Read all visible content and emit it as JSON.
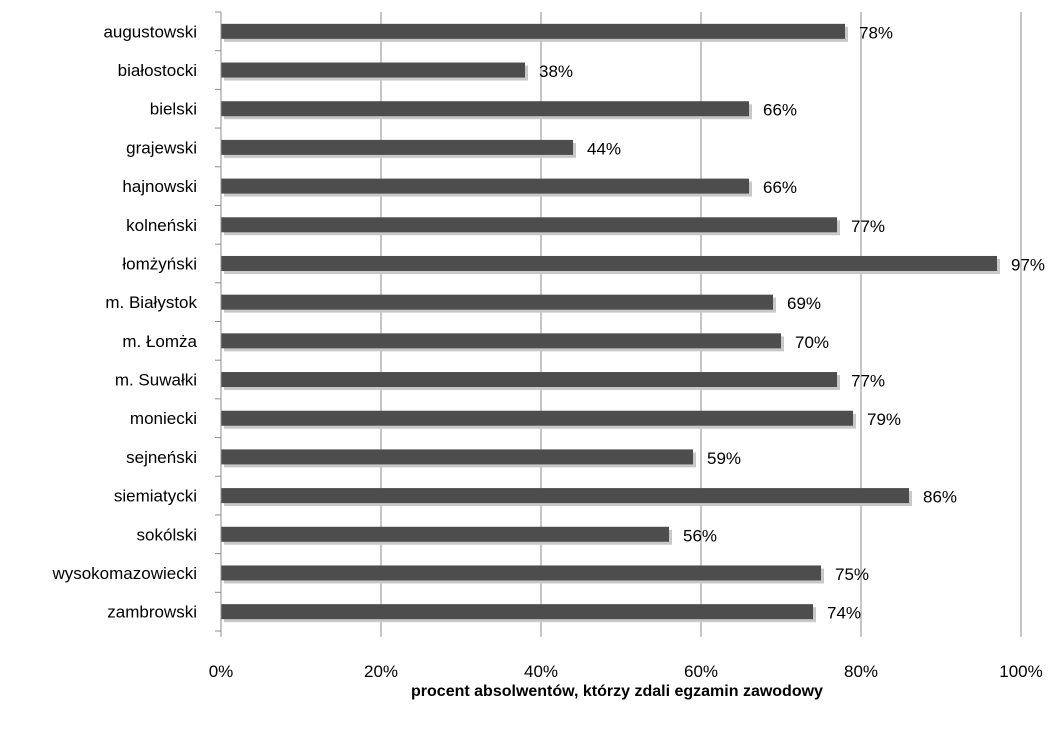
{
  "chart_data": {
    "type": "bar",
    "orientation": "horizontal",
    "categories": [
      "augustowski",
      "białostocki",
      "bielski",
      "grajewski",
      "hajnowski",
      "kolneński",
      "łomżyński",
      "m. Białystok",
      "m. Łomża",
      "m. Suwałki",
      "moniecki",
      "sejneński",
      "siemiatycki",
      "sokólski",
      "wysokomazowiecki",
      "zambrowski"
    ],
    "values": [
      78,
      38,
      66,
      44,
      66,
      77,
      97,
      69,
      70,
      77,
      79,
      59,
      86,
      56,
      75,
      74
    ],
    "data_labels": [
      "78%",
      "38%",
      "66%",
      "44%",
      "66%",
      "77%",
      "97%",
      "69%",
      "70%",
      "77%",
      "79%",
      "59%",
      "86%",
      "56%",
      "75%",
      "74%"
    ],
    "xlabel": "procent absolwentów, którzy zdali egzamin zawodowy",
    "ylabel": "",
    "xlim": [
      0,
      100
    ],
    "x_ticks": [
      "0%",
      "20%",
      "40%",
      "60%",
      "80%",
      "100%"
    ],
    "grid": "vertical",
    "bar_color": "#4d4d4d",
    "grid_color": "#8c8c8c"
  }
}
